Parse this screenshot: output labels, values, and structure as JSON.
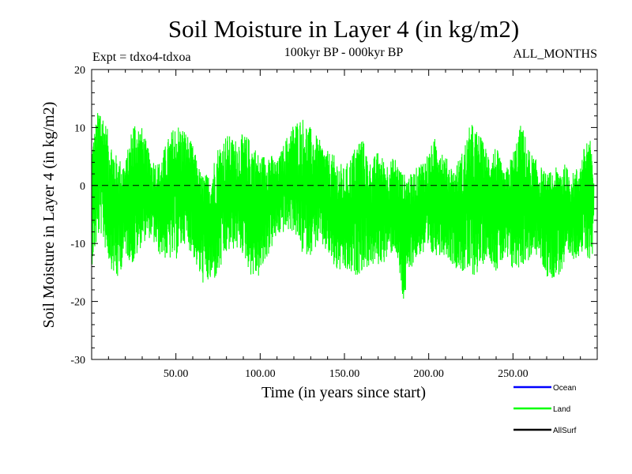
{
  "chart_data": {
    "type": "line",
    "title": "Soil Moisture in Layer 4 (in kg/m2)",
    "subtitle_left": "Expt = tdxo4-tdxoa",
    "subtitle_center": "100kyr BP - 000kyr BP",
    "subtitle_right": "ALL_MONTHS",
    "xlabel": "Time (in years since start)",
    "ylabel": "Soil Moisture in Layer 4 (in kg/m2)",
    "xlim": [
      0,
      300
    ],
    "ylim": [
      -30,
      20
    ],
    "x_ticks": [
      50,
      100,
      150,
      200,
      250
    ],
    "x_tick_labels": [
      "50.00",
      "100.00",
      "150.00",
      "200.00",
      "250.00"
    ],
    "y_ticks": [
      -30,
      -20,
      -10,
      0,
      10,
      20
    ],
    "y_tick_labels": [
      "-30",
      "-20",
      "-10",
      "0",
      "10",
      "20"
    ],
    "zero_line": "dashed",
    "grid": false,
    "legend_position": "bottom-right",
    "series": [
      {
        "name": "Ocean",
        "color": "#0000ff",
        "values": []
      },
      {
        "name": "Land",
        "color": "#00ff00",
        "x": [
          0,
          5,
          10,
          15,
          20,
          25,
          30,
          35,
          40,
          45,
          50,
          55,
          60,
          65,
          70,
          75,
          80,
          85,
          90,
          95,
          100,
          105,
          110,
          115,
          120,
          125,
          130,
          135,
          140,
          145,
          150,
          155,
          160,
          165,
          170,
          175,
          180,
          185,
          190,
          195,
          200,
          205,
          210,
          215,
          220,
          225,
          230,
          235,
          240,
          245,
          250,
          255,
          260,
          265,
          270,
          275,
          280,
          285,
          290,
          295,
          298
        ],
        "y_high": [
          7,
          15,
          9,
          5,
          4,
          12,
          10,
          5,
          4,
          8,
          11,
          10,
          7,
          2,
          2,
          7,
          9,
          8,
          9,
          8,
          5,
          6,
          4,
          8,
          11,
          12,
          10,
          8,
          6,
          5,
          3,
          6,
          9,
          4,
          6,
          4,
          5,
          2,
          2,
          4,
          6,
          9,
          5,
          3,
          6,
          11,
          9,
          6,
          7,
          2,
          6,
          11,
          6,
          4,
          2,
          3,
          4,
          2,
          4,
          10,
          2
        ],
        "y_low": [
          -14,
          -8,
          -13,
          -17,
          -12,
          -14,
          -10,
          -9,
          -12,
          -13,
          -13,
          -10,
          -12,
          -17,
          -17,
          -16,
          -12,
          -11,
          -12,
          -16,
          -16,
          -12,
          -9,
          -8,
          -8,
          -12,
          -12,
          -10,
          -12,
          -15,
          -15,
          -16,
          -15,
          -14,
          -14,
          -13,
          -11,
          -21,
          -14,
          -12,
          -13,
          -12,
          -12,
          -14,
          -15,
          -16,
          -15,
          -12,
          -15,
          -13,
          -15,
          -14,
          -13,
          -12,
          -16,
          -16,
          -15,
          -13,
          -12,
          -13,
          -12
        ],
        "y_mid": [
          -2,
          2,
          -1,
          -4,
          -3,
          -1,
          0,
          -2,
          -3,
          -2,
          -1,
          0,
          -2,
          -5,
          -7,
          -4,
          -2,
          -1,
          -2,
          -4,
          -4,
          -2,
          -1,
          0,
          1,
          0,
          -1,
          -1,
          -3,
          -5,
          -6,
          -4,
          -2,
          -4,
          -3,
          -4,
          -3,
          -6,
          -5,
          -3,
          -3,
          -1,
          -3,
          -5,
          -5,
          -2,
          -2,
          -3,
          -3,
          -5,
          -4,
          -2,
          -3,
          -4,
          -6,
          -6,
          -4,
          -4,
          -3,
          -1,
          -2
        ]
      },
      {
        "name": "AllSurf",
        "color": "#000000",
        "values": []
      }
    ]
  }
}
